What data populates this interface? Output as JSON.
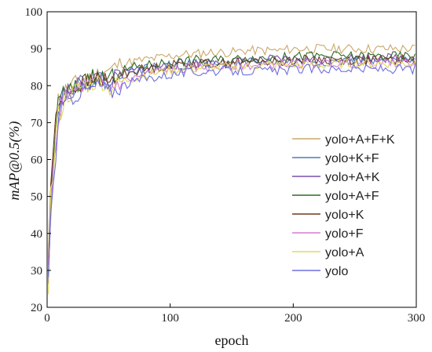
{
  "chart_data": {
    "type": "line",
    "title": "",
    "xlabel": "epoch",
    "ylabel": "mAP@0.5(%)",
    "xlim": [
      0,
      300
    ],
    "ylim": [
      20,
      100
    ],
    "xticks": [
      0,
      100,
      200,
      300
    ],
    "yticks": [
      20,
      30,
      40,
      50,
      60,
      70,
      80,
      90,
      100
    ],
    "grid": false,
    "legend_position": "right",
    "series": [
      {
        "name": "yolo+A+F+K",
        "color": "#c8a86a",
        "seed": 11,
        "x": [
          1,
          3,
          5,
          8,
          12,
          16,
          20,
          25,
          30,
          35,
          40,
          45,
          50,
          55,
          60,
          70,
          80,
          90,
          100,
          110,
          120,
          130,
          140,
          150,
          160,
          170,
          180,
          190,
          200,
          210,
          220,
          230,
          240,
          250,
          260,
          270,
          280,
          290,
          300
        ],
        "y": [
          30,
          55,
          62,
          75,
          78,
          79,
          80,
          81,
          82,
          83,
          83,
          84,
          84,
          85,
          86,
          86.5,
          87,
          87.5,
          88,
          88.5,
          88.5,
          89,
          89,
          89,
          89.5,
          89.5,
          89.5,
          89.5,
          90,
          90,
          90,
          90,
          90,
          90,
          90,
          90,
          90,
          90,
          90
        ]
      },
      {
        "name": "yolo+K+F",
        "color": "#4f79c2",
        "seed": 22,
        "x": [
          1,
          3,
          5,
          8,
          12,
          16,
          20,
          25,
          30,
          35,
          40,
          45,
          50,
          55,
          60,
          70,
          80,
          90,
          100,
          110,
          120,
          130,
          140,
          150,
          160,
          170,
          180,
          190,
          200,
          210,
          220,
          230,
          240,
          250,
          260,
          270,
          280,
          290,
          300
        ],
        "y": [
          30,
          50,
          58,
          72,
          77,
          78,
          79,
          80,
          81,
          81,
          82,
          82,
          80,
          82,
          83,
          84,
          84.5,
          85,
          85.5,
          85.5,
          86,
          86,
          86,
          86,
          86,
          86.5,
          86.5,
          86.5,
          86.5,
          86.5,
          86.5,
          86.5,
          86.5,
          86.5,
          86.5,
          86.5,
          86.5,
          86.5,
          86.5
        ]
      },
      {
        "name": "yolo+A+K",
        "color": "#7a4fb0",
        "seed": 33,
        "x": [
          1,
          3,
          5,
          8,
          12,
          16,
          20,
          25,
          30,
          35,
          40,
          45,
          50,
          55,
          60,
          70,
          80,
          90,
          100,
          110,
          120,
          130,
          140,
          150,
          160,
          170,
          180,
          190,
          200,
          210,
          220,
          230,
          240,
          250,
          260,
          270,
          280,
          290,
          300
        ],
        "y": [
          28,
          50,
          57,
          71,
          76,
          78,
          79,
          80,
          81,
          81,
          82,
          82,
          80,
          82,
          83,
          84,
          84.5,
          85,
          85.5,
          86,
          86,
          86,
          86.5,
          86.5,
          86.5,
          86.5,
          87,
          87,
          87,
          87,
          87,
          87,
          87.5,
          87.5,
          87.5,
          87.5,
          87.5,
          87.5,
          87.5
        ]
      },
      {
        "name": "yolo+A+F",
        "color": "#2e6b24",
        "seed": 44,
        "x": [
          1,
          3,
          5,
          8,
          12,
          16,
          20,
          25,
          30,
          35,
          40,
          45,
          50,
          55,
          60,
          70,
          80,
          90,
          100,
          110,
          120,
          130,
          140,
          150,
          160,
          170,
          180,
          190,
          200,
          210,
          220,
          230,
          240,
          250,
          260,
          270,
          280,
          290,
          300
        ],
        "y": [
          29,
          52,
          60,
          73,
          77,
          78,
          79,
          80,
          81,
          82,
          82,
          83,
          81,
          83,
          84,
          85,
          85.5,
          86,
          86.5,
          86.5,
          87,
          87,
          87,
          87,
          87.5,
          87.5,
          87.5,
          87.5,
          88,
          88,
          88,
          88,
          88,
          88,
          88,
          88,
          88,
          88,
          88
        ]
      },
      {
        "name": "yolo+K",
        "color": "#6b3a1c",
        "seed": 55,
        "x": [
          1,
          3,
          5,
          8,
          12,
          16,
          20,
          25,
          30,
          35,
          40,
          45,
          50,
          55,
          60,
          70,
          80,
          90,
          100,
          110,
          120,
          130,
          140,
          150,
          160,
          170,
          180,
          190,
          200,
          210,
          220,
          230,
          240,
          250,
          260,
          270,
          280,
          290,
          300
        ],
        "y": [
          30,
          55,
          62,
          73,
          77,
          78,
          79,
          80,
          81,
          81,
          82,
          82,
          80,
          82,
          83,
          84,
          84.5,
          85,
          85.5,
          86,
          86,
          86,
          86,
          86.5,
          86.5,
          86.5,
          86.5,
          86.5,
          87,
          87,
          87,
          87,
          87,
          87,
          87,
          87,
          87,
          87,
          87
        ]
      },
      {
        "name": "yolo+F",
        "color": "#d77ad6",
        "seed": 66,
        "x": [
          1,
          3,
          5,
          8,
          12,
          16,
          20,
          25,
          30,
          35,
          40,
          45,
          50,
          55,
          60,
          70,
          80,
          90,
          100,
          110,
          120,
          130,
          140,
          150,
          160,
          170,
          180,
          190,
          200,
          210,
          220,
          230,
          240,
          250,
          260,
          270,
          280,
          290,
          300
        ],
        "y": [
          28,
          48,
          55,
          70,
          75,
          77,
          78,
          79,
          80,
          80,
          81,
          81,
          79,
          80,
          81,
          82,
          83,
          84,
          84.5,
          84.5,
          85,
          85,
          85,
          85.5,
          85.5,
          85.5,
          85.5,
          86,
          86,
          86,
          86,
          86,
          86,
          86,
          86,
          86,
          86,
          86,
          86
        ]
      },
      {
        "name": "yolo+A",
        "color": "#e3d85a",
        "seed": 77,
        "x": [
          1,
          3,
          5,
          8,
          12,
          16,
          20,
          25,
          30,
          35,
          40,
          45,
          50,
          55,
          60,
          70,
          80,
          90,
          100,
          110,
          120,
          130,
          140,
          150,
          160,
          170,
          180,
          190,
          200,
          210,
          220,
          230,
          240,
          250,
          260,
          270,
          280,
          290,
          300
        ],
        "y": [
          27,
          50,
          56,
          70,
          75,
          77,
          78,
          79,
          80,
          80,
          81,
          81,
          79,
          80,
          81,
          82,
          83,
          83.5,
          84,
          84.5,
          84.5,
          85,
          85,
          85,
          85,
          85.5,
          85.5,
          85.5,
          85.5,
          85.5,
          85.5,
          85.5,
          86,
          86,
          86,
          86,
          86,
          86,
          86
        ]
      },
      {
        "name": "yolo",
        "color": "#6e6ee0",
        "seed": 88,
        "x": [
          1,
          3,
          5,
          8,
          12,
          16,
          20,
          25,
          30,
          35,
          40,
          45,
          50,
          55,
          60,
          70,
          80,
          90,
          100,
          110,
          120,
          130,
          140,
          150,
          160,
          170,
          180,
          190,
          200,
          210,
          220,
          230,
          240,
          250,
          260,
          270,
          280,
          290,
          300
        ],
        "y": [
          30,
          45,
          52,
          68,
          73,
          76,
          77,
          78,
          79,
          79,
          80,
          80,
          78,
          79,
          80,
          81,
          82,
          82.5,
          83,
          83.5,
          83.5,
          84,
          84,
          84,
          84,
          84,
          84,
          84,
          84.5,
          84.5,
          84.5,
          84.5,
          84.5,
          84.5,
          84.5,
          84.5,
          84.5,
          84.5,
          84.5
        ]
      }
    ]
  }
}
